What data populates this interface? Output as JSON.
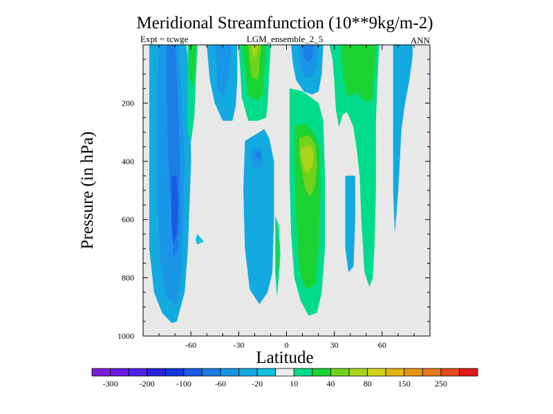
{
  "chart_data": {
    "type": "contour",
    "title": "Meridional Streamfunction (10**9kg/m-2)",
    "subtitle_left": "Expt = tcwge",
    "subtitle_center": "LGM_ensemble_2_5",
    "subtitle_right": "ANN",
    "xlabel": "Latitude",
    "ylabel": "Pressure (in hPa)",
    "xlim": [
      -90,
      90
    ],
    "ylim": [
      1000,
      0
    ],
    "xticks": [
      {
        "value": -60,
        "label": "-60"
      },
      {
        "value": -30,
        "label": "-30"
      },
      {
        "value": 0,
        "label": "0"
      },
      {
        "value": 30,
        "label": "30"
      },
      {
        "value": 60,
        "label": "60"
      }
    ],
    "yticks": [
      {
        "value": 200,
        "label": "200"
      },
      {
        "value": 400,
        "label": "400"
      },
      {
        "value": 600,
        "label": "600"
      },
      {
        "value": 800,
        "label": "800"
      },
      {
        "value": 1000,
        "label": "1000"
      }
    ],
    "background_color": "#e8e8e8",
    "colorbar": {
      "colors": [
        "#7a1fd6",
        "#6a1ce0",
        "#4c22e6",
        "#2a22d8",
        "#1236d8",
        "#1a5ae6",
        "#1a7ee6",
        "#1a96e6",
        "#12aae0",
        "#10c0e0",
        "#ececec",
        "#00dc8c",
        "#1ad232",
        "#72d21a",
        "#aad21a",
        "#d2d21a",
        "#e6b412",
        "#e69612",
        "#e6781a",
        "#e64a1a",
        "#e01a1a"
      ],
      "labels": [
        "-300",
        "-200",
        "-100",
        "-60",
        "-20",
        "10",
        "40",
        "80",
        "150",
        "250"
      ]
    },
    "regions": [
      {
        "name": "sh-outer-cell",
        "color": "#12aae0",
        "points": [
          [
            -86,
            0
          ],
          [
            -63,
            0
          ],
          [
            -61,
            120
          ],
          [
            -60,
            400
          ],
          [
            -62,
            700
          ],
          [
            -64,
            850
          ],
          [
            -69,
            950
          ],
          [
            -72,
            955
          ],
          [
            -78,
            920
          ],
          [
            -83,
            850
          ],
          [
            -86,
            700
          ]
        ]
      },
      {
        "name": "sh-cell-core",
        "color": "#1a96e6",
        "points": [
          [
            -80,
            0
          ],
          [
            -68,
            0
          ],
          [
            -66,
            200
          ],
          [
            -64,
            400
          ],
          [
            -65,
            600
          ],
          [
            -66,
            800
          ],
          [
            -69,
            890
          ],
          [
            -75,
            870
          ],
          [
            -79,
            760
          ],
          [
            -81,
            500
          ],
          [
            -81,
            200
          ]
        ]
      },
      {
        "name": "sh-cell-inner",
        "color": "#1a7ee6",
        "points": [
          [
            -75,
            0
          ],
          [
            -70,
            0
          ],
          [
            -68,
            200
          ],
          [
            -67,
            400
          ],
          [
            -67,
            600
          ],
          [
            -68,
            700
          ],
          [
            -71,
            730
          ],
          [
            -72,
            600
          ],
          [
            -74,
            400
          ],
          [
            -75,
            200
          ]
        ]
      },
      {
        "name": "sh-cell-strong",
        "color": "#1a5ae6",
        "points": [
          [
            -72,
            450
          ],
          [
            -69,
            450
          ],
          [
            -68,
            550
          ],
          [
            -69,
            650
          ],
          [
            -71,
            680
          ],
          [
            -72,
            620
          ]
        ]
      },
      {
        "name": "sh-green-strip",
        "color": "#00dc8c",
        "points": [
          [
            -62,
            0
          ],
          [
            -56,
            0
          ],
          [
            -57,
            120
          ],
          [
            -58,
            250
          ],
          [
            -60,
            330
          ],
          [
            -62,
            300
          ]
        ]
      },
      {
        "name": "sh-green-strip-inner",
        "color": "#1ad232",
        "points": [
          [
            -61,
            0
          ],
          [
            -57,
            0
          ],
          [
            -58,
            100
          ],
          [
            -59,
            140
          ],
          [
            -61,
            110
          ]
        ]
      },
      {
        "name": "small-blob-650",
        "color": "#10c0e0",
        "points": [
          [
            -56,
            650
          ],
          [
            -52,
            675
          ],
          [
            -56,
            685
          ],
          [
            -57,
            670
          ]
        ]
      },
      {
        "name": "mid-south-column",
        "color": "#12aae0",
        "points": [
          [
            -50,
            0
          ],
          [
            -31,
            0
          ],
          [
            -31,
            120
          ],
          [
            -32,
            210
          ],
          [
            -34,
            260
          ],
          [
            -40,
            260
          ],
          [
            -45,
            200
          ],
          [
            -48,
            120
          ]
        ]
      },
      {
        "name": "mid-south-core",
        "color": "#1a96e6",
        "points": [
          [
            -45,
            0
          ],
          [
            -35,
            0
          ],
          [
            -36,
            100
          ],
          [
            -40,
            180
          ],
          [
            -43,
            150
          ],
          [
            -44,
            60
          ]
        ]
      },
      {
        "name": "sh-hadley-upper",
        "color": "#00dc8c",
        "points": [
          [
            -30,
            0
          ],
          [
            -10,
            0
          ],
          [
            -11,
            100
          ],
          [
            -12,
            210
          ],
          [
            -13,
            250
          ],
          [
            -18,
            260
          ],
          [
            -24,
            260
          ],
          [
            -28,
            180
          ],
          [
            -29,
            80
          ]
        ]
      },
      {
        "name": "sh-hadley-upper-green",
        "color": "#1ad232",
        "points": [
          [
            -28,
            0
          ],
          [
            -13,
            0
          ],
          [
            -14,
            100
          ],
          [
            -15,
            170
          ],
          [
            -19,
            190
          ],
          [
            -24,
            170
          ],
          [
            -26,
            80
          ]
        ]
      },
      {
        "name": "sh-hadley-upper-lime",
        "color": "#72d21a",
        "points": [
          [
            -24,
            0
          ],
          [
            -16,
            0
          ],
          [
            -17,
            60
          ],
          [
            -18,
            120
          ],
          [
            -22,
            110
          ],
          [
            -23,
            50
          ]
        ]
      },
      {
        "name": "sh-hadley-upper-yellow",
        "color": "#aad21a",
        "points": [
          [
            -22,
            0
          ],
          [
            -18,
            0
          ],
          [
            -19,
            40
          ],
          [
            -21,
            40
          ]
        ]
      },
      {
        "name": "sh-hadley-lower",
        "color": "#12aae0",
        "points": [
          [
            -26,
            330
          ],
          [
            -14,
            290
          ],
          [
            -11,
            320
          ],
          [
            -8,
            400
          ],
          [
            -8,
            600
          ],
          [
            -9,
            780
          ],
          [
            -12,
            850
          ],
          [
            -17,
            890
          ],
          [
            -23,
            840
          ],
          [
            -26,
            700
          ],
          [
            -27,
            500
          ]
        ]
      },
      {
        "name": "sh-hadley-lower-core",
        "color": "#1a96e6",
        "points": [
          [
            -22,
            360
          ],
          [
            -17,
            350
          ],
          [
            -15,
            400
          ],
          [
            -16,
            420
          ],
          [
            -21,
            420
          ]
        ]
      },
      {
        "name": "sh-arrow-mark",
        "color": "#1a7ee6",
        "points": [
          [
            -19,
            370
          ],
          [
            -16,
            365
          ],
          [
            -16,
            390
          ],
          [
            -19,
            385
          ]
        ]
      },
      {
        "name": "eq-thin-green",
        "color": "#00dc8c",
        "points": [
          [
            -7,
            590
          ],
          [
            -5,
            620
          ],
          [
            -4,
            720
          ],
          [
            -5,
            800
          ],
          [
            -6,
            860
          ],
          [
            -7,
            780
          ]
        ]
      },
      {
        "name": "eq-thin-lime",
        "color": "#1ad232",
        "points": [
          [
            -6,
            650
          ],
          [
            -5,
            680
          ],
          [
            -5,
            760
          ],
          [
            -6,
            790
          ]
        ]
      },
      {
        "name": "eq-blue-upper",
        "color": "#12aae0",
        "points": [
          [
            3,
            0
          ],
          [
            23,
            0
          ],
          [
            22,
            100
          ],
          [
            20,
            160
          ],
          [
            16,
            170
          ],
          [
            11,
            160
          ],
          [
            6,
            120
          ],
          [
            4,
            60
          ]
        ]
      },
      {
        "name": "eq-blue-mid",
        "color": "#1a96e6",
        "points": [
          [
            7,
            0
          ],
          [
            20,
            0
          ],
          [
            19,
            70
          ],
          [
            16,
            110
          ],
          [
            12,
            110
          ],
          [
            9,
            80
          ]
        ]
      },
      {
        "name": "eq-blue-core",
        "color": "#1a7ee6",
        "points": [
          [
            10,
            0
          ],
          [
            17,
            0
          ],
          [
            16,
            50
          ],
          [
            13,
            60
          ],
          [
            11,
            40
          ]
        ]
      },
      {
        "name": "nh-hadley-upper",
        "color": "#00dc8c",
        "points": [
          [
            2,
            150
          ],
          [
            10,
            160
          ],
          [
            15,
            180
          ],
          [
            20,
            200
          ],
          [
            23,
            260
          ],
          [
            24,
            450
          ],
          [
            24,
            700
          ],
          [
            22,
            850
          ],
          [
            19,
            920
          ],
          [
            14,
            930
          ],
          [
            9,
            880
          ],
          [
            5,
            800
          ],
          [
            3,
            650
          ],
          [
            2,
            450
          ],
          [
            2,
            250
          ]
        ]
      },
      {
        "name": "nh-hadley-green",
        "color": "#1ad232",
        "points": [
          [
            5,
            280
          ],
          [
            12,
            270
          ],
          [
            17,
            300
          ],
          [
            21,
            360
          ],
          [
            21,
            500
          ],
          [
            20,
            700
          ],
          [
            18,
            820
          ],
          [
            13,
            840
          ],
          [
            9,
            800
          ],
          [
            7,
            700
          ],
          [
            6,
            550
          ],
          [
            5,
            400
          ]
        ]
      },
      {
        "name": "nh-hadley-lime",
        "color": "#72d21a",
        "points": [
          [
            8,
            320
          ],
          [
            14,
            310
          ],
          [
            18,
            340
          ],
          [
            19,
            420
          ],
          [
            18,
            480
          ],
          [
            15,
            520
          ],
          [
            12,
            500
          ],
          [
            10,
            440
          ],
          [
            8,
            380
          ]
        ]
      },
      {
        "name": "nh-hadley-yellow",
        "color": "#aad21a",
        "points": [
          [
            9,
            355
          ],
          [
            15,
            345
          ],
          [
            17,
            380
          ],
          [
            16,
            420
          ],
          [
            13,
            440
          ],
          [
            11,
            430
          ],
          [
            10,
            400
          ]
        ]
      },
      {
        "name": "nh-tall-green",
        "color": "#00dc8c",
        "points": [
          [
            27,
            0
          ],
          [
            58,
            0
          ],
          [
            57,
            120
          ],
          [
            56,
            260
          ],
          [
            56,
            500
          ],
          [
            55,
            700
          ],
          [
            54,
            800
          ],
          [
            52,
            830
          ],
          [
            49,
            780
          ],
          [
            47,
            600
          ],
          [
            46,
            450
          ],
          [
            44,
            350
          ],
          [
            42,
            280
          ],
          [
            38,
            230
          ],
          [
            35,
            240
          ],
          [
            33,
            280
          ],
          [
            31,
            220
          ],
          [
            30,
            120
          ],
          [
            29,
            50
          ]
        ]
      },
      {
        "name": "nh-tall-green-inner",
        "color": "#1ad232",
        "points": [
          [
            34,
            0
          ],
          [
            56,
            0
          ],
          [
            55,
            100
          ],
          [
            54,
            180
          ],
          [
            51,
            200
          ],
          [
            47,
            180
          ],
          [
            43,
            160
          ],
          [
            40,
            180
          ],
          [
            38,
            170
          ],
          [
            36,
            120
          ],
          [
            35,
            60
          ]
        ]
      },
      {
        "name": "nh-blue-column",
        "color": "#12aae0",
        "points": [
          [
            37,
            450
          ],
          [
            43,
            450
          ],
          [
            43,
            600
          ],
          [
            42,
            760
          ],
          [
            39,
            780
          ],
          [
            37,
            700
          ]
        ]
      },
      {
        "name": "nh-outer-column",
        "color": "#12aae0",
        "points": [
          [
            67,
            0
          ],
          [
            79,
            0
          ],
          [
            79,
            40
          ],
          [
            77,
            120
          ],
          [
            74,
            210
          ],
          [
            72,
            290
          ],
          [
            70,
            500
          ],
          [
            68,
            640
          ],
          [
            67,
            500
          ],
          [
            67,
            200
          ]
        ]
      }
    ]
  }
}
